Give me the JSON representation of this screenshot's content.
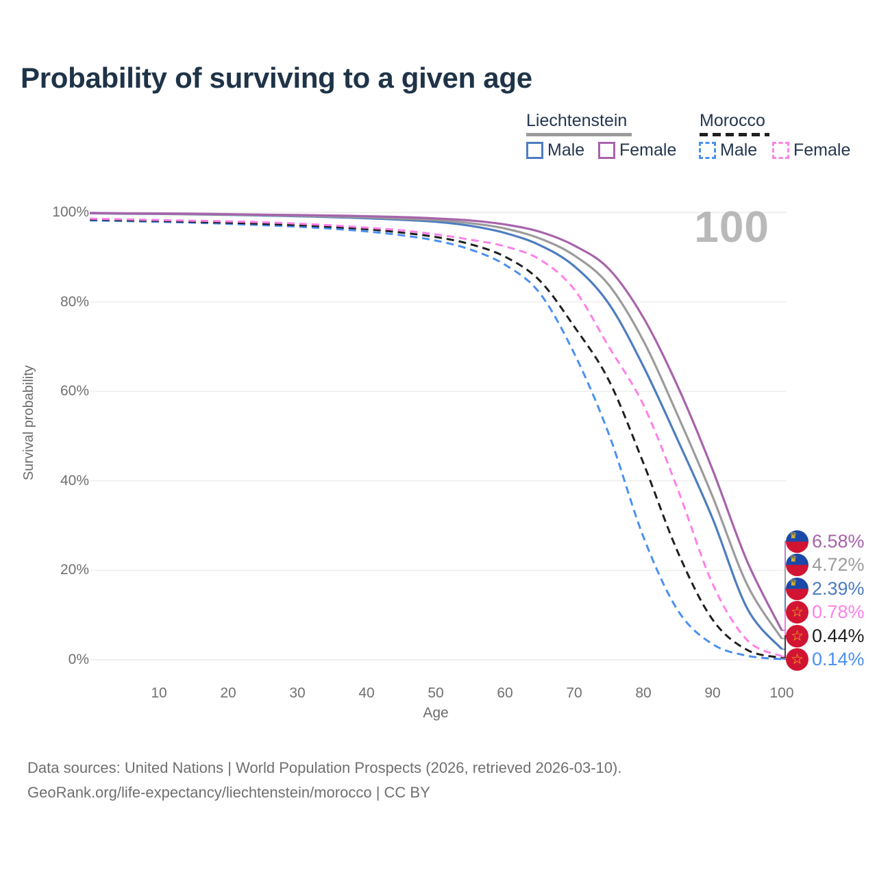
{
  "title": "Probability of surviving to a given age",
  "watermark": "100",
  "legend": {
    "groups": [
      {
        "label": "Liechtenstein",
        "line_style": "solid",
        "line_color": "#9b9b9b"
      },
      {
        "label": "Morocco",
        "line_style": "dashed",
        "line_color": "#1f1f1f"
      }
    ],
    "items": [
      {
        "label": "Male",
        "country": "Liechtenstein",
        "style": "solid",
        "color": "#4d7dbf"
      },
      {
        "label": "Female",
        "country": "Liechtenstein",
        "style": "solid",
        "color": "#a763ab"
      },
      {
        "label": "Male",
        "country": "Morocco",
        "style": "dashed",
        "color": "#4a90f2"
      },
      {
        "label": "Female",
        "country": "Morocco",
        "style": "dashed",
        "color": "#ff80e8"
      }
    ]
  },
  "chart_data": {
    "type": "line",
    "title": "Probability of surviving to a given age",
    "xlabel": "Age",
    "ylabel": "Survival probability",
    "xlim": [
      0,
      100
    ],
    "ylim": [
      0,
      100
    ],
    "grid": "horizontal",
    "legend_position": "top-right",
    "x_ticks": [
      10,
      20,
      30,
      40,
      50,
      60,
      70,
      80,
      90,
      100
    ],
    "y_ticks": [
      "0%",
      "20%",
      "40%",
      "60%",
      "80%",
      "100%"
    ],
    "x": [
      0,
      5,
      10,
      15,
      20,
      25,
      30,
      35,
      40,
      45,
      50,
      55,
      60,
      65,
      70,
      75,
      80,
      85,
      90,
      95,
      100
    ],
    "series": [
      {
        "name": "Liechtenstein Female",
        "country": "Liechtenstein",
        "sex": "Female",
        "color": "#a763ab",
        "dashed": false,
        "flag": "liechtenstein",
        "end_label": "6.58%",
        "values": [
          99.9,
          99.8,
          99.75,
          99.7,
          99.6,
          99.5,
          99.4,
          99.3,
          99.15,
          98.95,
          98.65,
          98.2,
          97.3,
          95.7,
          92.6,
          87.4,
          76.5,
          61.0,
          42.5,
          22.0,
          6.58
        ]
      },
      {
        "name": "Liechtenstein",
        "country": "Liechtenstein",
        "sex": "Both",
        "color": "#9b9b9b",
        "dashed": false,
        "flag": "liechtenstein",
        "end_label": "4.72%",
        "values": [
          99.85,
          99.75,
          99.7,
          99.6,
          99.5,
          99.4,
          99.25,
          99.1,
          98.9,
          98.6,
          98.3,
          97.6,
          96.4,
          94.2,
          90.4,
          83.8,
          71.3,
          54.5,
          36.5,
          16.8,
          4.72
        ]
      },
      {
        "name": "Liechtenstein Male",
        "country": "Liechtenstein",
        "sex": "Male",
        "color": "#4d7dbf",
        "dashed": false,
        "flag": "liechtenstein",
        "end_label": "2.39%",
        "values": [
          99.8,
          99.7,
          99.65,
          99.55,
          99.45,
          99.3,
          99.15,
          98.95,
          98.7,
          98.35,
          97.9,
          97.0,
          95.4,
          92.7,
          88.0,
          79.6,
          65.6,
          49.0,
          31.6,
          11.5,
          2.39
        ]
      },
      {
        "name": "Morocco Female",
        "country": "Morocco",
        "sex": "Female",
        "color": "#ff80e8",
        "dashed": true,
        "flag": "morocco",
        "end_label": "0.78%",
        "values": [
          98.6,
          98.45,
          98.3,
          98.15,
          98.0,
          97.8,
          97.5,
          97.1,
          96.6,
          96.0,
          95.1,
          93.9,
          92.4,
          89.5,
          82.8,
          70.0,
          57.0,
          38.0,
          17.0,
          4.4,
          0.78
        ]
      },
      {
        "name": "Morocco",
        "country": "Morocco",
        "sex": "Both",
        "color": "#1f1f1f",
        "dashed": true,
        "flag": "morocco",
        "end_label": "0.44%",
        "values": [
          98.4,
          98.25,
          98.1,
          97.9,
          97.7,
          97.45,
          97.15,
          96.75,
          96.25,
          95.5,
          94.5,
          92.9,
          90.1,
          84.8,
          74.5,
          62.5,
          44.0,
          24.0,
          9.0,
          2.2,
          0.44
        ]
      },
      {
        "name": "Morocco Male",
        "country": "Morocco",
        "sex": "Male",
        "color": "#4a90f2",
        "dashed": true,
        "flag": "morocco",
        "end_label": "0.14%",
        "values": [
          98.2,
          98.05,
          97.9,
          97.7,
          97.45,
          97.15,
          96.8,
          96.35,
          95.75,
          94.9,
          93.7,
          91.7,
          88.3,
          82.0,
          68.5,
          50.5,
          27.5,
          11.0,
          3.5,
          0.9,
          0.14
        ]
      }
    ]
  },
  "footer": {
    "line1": "Data sources: United Nations | World Population Prospects (2026, retrieved 2026-03-10).",
    "line2": "GeoRank.org/life-expectancy/liechtenstein/morocco | CC BY"
  },
  "icons": {
    "liechtenstein_crown": "♛",
    "morocco_star": "☆"
  }
}
